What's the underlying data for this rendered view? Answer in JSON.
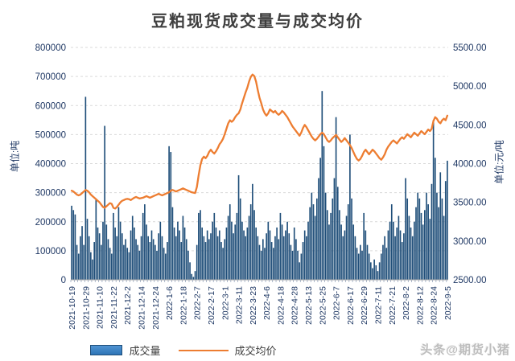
{
  "title": "豆粕现货成交量与成交均价",
  "watermark": "头条@期货小猪",
  "colors": {
    "bar": "#1F4E79",
    "line": "#ED7D31",
    "axis_text": "#1F3864",
    "grid": "#D9D9D9",
    "axis_line": "#A6A6A6",
    "title_text": "#3F3F3F"
  },
  "chart_data": {
    "type": "bar+line",
    "title": "豆粕现货成交量与成交均价",
    "grid": "horizontal-dashed",
    "legend_position": "bottom",
    "left_axis": {
      "unit_label": "单位:吨",
      "range": [
        0,
        800000
      ],
      "tick_step": 100000,
      "ticks": [
        "0",
        "100000",
        "200000",
        "300000",
        "400000",
        "500000",
        "600000",
        "700000",
        "800000"
      ]
    },
    "right_axis": {
      "unit_label": "单位:元/吨",
      "range": [
        2500,
        5500
      ],
      "tick_step": 500,
      "ticks": [
        "2500.00",
        "3000.00",
        "3500.00",
        "4000.00",
        "4500.00",
        "5000.00",
        "5500.00"
      ]
    },
    "x_labels": [
      "2021-10-19",
      "2021-10-29",
      "2021-11-10",
      "2021-11-22",
      "2021-12-2",
      "2021-12-14",
      "2021-12-24",
      "2022-1-6",
      "2022-1-18",
      "2022-2-7",
      "2022-2-17",
      "2022-3-1",
      "2022-3-11",
      "2022-3-23",
      "2022-4-6",
      "2022-4-18",
      "2022-4-28",
      "2022-5-13",
      "2022-5-25",
      "2022-6-7",
      "2022-6-17",
      "2022-6-29",
      "2022-7-11",
      "2022-7-21",
      "2022-8-2",
      "2022-8-12",
      "2022-8-24",
      "2022-9-5"
    ],
    "label_every": 8,
    "series": [
      {
        "name": "成交量",
        "type": "bar",
        "axis": "left",
        "color": "#1F4E79",
        "values": [
          255000,
          240000,
          225000,
          120000,
          90000,
          150000,
          185000,
          120000,
          630000,
          210000,
          150000,
          95000,
          70000,
          130000,
          280000,
          180000,
          160000,
          120000,
          200000,
          530000,
          190000,
          140000,
          110000,
          90000,
          230000,
          180000,
          150000,
          250000,
          200000,
          160000,
          120000,
          140000,
          110000,
          95000,
          170000,
          220000,
          180000,
          140000,
          120000,
          100000,
          150000,
          230000,
          260000,
          190000,
          150000,
          130000,
          170000,
          140000,
          120000,
          100000,
          160000,
          200000,
          150000,
          110000,
          90000,
          130000,
          460000,
          440000,
          250000,
          180000,
          150000,
          200000,
          170000,
          130000,
          220000,
          180000,
          140000,
          100000,
          60000,
          20000,
          10000,
          30000,
          120000,
          230000,
          240000,
          180000,
          150000,
          130000,
          170000,
          140000,
          160000,
          200000,
          230000,
          180000,
          150000,
          170000,
          130000,
          110000,
          140000,
          180000,
          220000,
          260000,
          200000,
          160000,
          190000,
          230000,
          360000,
          280000,
          200000,
          170000,
          150000,
          180000,
          220000,
          260000,
          330000,
          240000,
          180000,
          150000,
          120000,
          100000,
          140000,
          110000,
          160000,
          200000,
          170000,
          130000,
          110000,
          150000,
          180000,
          140000,
          230000,
          190000,
          150000,
          170000,
          200000,
          160000,
          120000,
          100000,
          180000,
          140000,
          100000,
          60000,
          90000,
          130000,
          170000,
          150000,
          200000,
          250000,
          300000,
          260000,
          220000,
          280000,
          350000,
          420000,
          650000,
          460000,
          300000,
          240000,
          190000,
          230000,
          280000,
          350000,
          560000,
          320000,
          240000,
          190000,
          150000,
          170000,
          220000,
          260000,
          500000,
          280000,
          190000,
          150000,
          110000,
          90000,
          120000,
          100000,
          230000,
          170000,
          120000,
          90000,
          60000,
          40000,
          70000,
          50000,
          30000,
          60000,
          90000,
          120000,
          150000,
          110000,
          170000,
          200000,
          260000,
          200000,
          150000,
          180000,
          220000,
          170000,
          130000,
          160000,
          350000,
          280000,
          220000,
          180000,
          150000,
          200000,
          250000,
          300000,
          280000,
          230000,
          190000,
          240000,
          300000,
          260000,
          210000,
          330000,
          550000,
          420000,
          300000,
          250000,
          370000,
          280000,
          220000,
          340000,
          410000
        ]
      },
      {
        "name": "成交均价",
        "type": "line",
        "axis": "right",
        "color": "#ED7D31",
        "values": [
          3650,
          3640,
          3620,
          3600,
          3590,
          3600,
          3620,
          3640,
          3660,
          3650,
          3630,
          3600,
          3580,
          3560,
          3540,
          3520,
          3500,
          3470,
          3440,
          3430,
          3450,
          3470,
          3490,
          3480,
          3430,
          3420,
          3440,
          3470,
          3500,
          3520,
          3530,
          3540,
          3545,
          3540,
          3530,
          3545,
          3560,
          3570,
          3560,
          3550,
          3555,
          3560,
          3570,
          3580,
          3570,
          3560,
          3570,
          3580,
          3590,
          3600,
          3610,
          3600,
          3590,
          3600,
          3610,
          3620,
          3630,
          3650,
          3660,
          3650,
          3640,
          3650,
          3660,
          3670,
          3680,
          3670,
          3660,
          3650,
          3640,
          3630,
          3625,
          3620,
          3700,
          3850,
          3980,
          4060,
          4090,
          4070,
          4100,
          4150,
          4180,
          4150,
          4130,
          4160,
          4200,
          4250,
          4280,
          4320,
          4380,
          4450,
          4520,
          4560,
          4540,
          4560,
          4600,
          4630,
          4650,
          4700,
          4780,
          4850,
          4920,
          4980,
          5060,
          5120,
          5150,
          5130,
          5060,
          4950,
          4850,
          4780,
          4700,
          4650,
          4620,
          4650,
          4700,
          4680,
          4660,
          4680,
          4650,
          4630,
          4650,
          4680,
          4660,
          4630,
          4600,
          4560,
          4520,
          4480,
          4450,
          4420,
          4390,
          4360,
          4400,
          4460,
          4500,
          4470,
          4430,
          4390,
          4350,
          4320,
          4300,
          4320,
          4350,
          4380,
          4400,
          4380,
          4340,
          4300,
          4280,
          4300,
          4330,
          4350,
          4370,
          4340,
          4310,
          4280,
          4300,
          4330,
          4300,
          4270,
          4240,
          4200,
          4150,
          4100,
          4060,
          4040,
          4060,
          4100,
          4150,
          4180,
          4150,
          4120,
          4150,
          4180,
          4160,
          4130,
          4100,
          4070,
          4050,
          4080,
          4120,
          4180,
          4220,
          4250,
          4280,
          4300,
          4280,
          4260,
          4290,
          4320,
          4340,
          4320,
          4350,
          4380,
          4360,
          4340,
          4370,
          4400,
          4380,
          4360,
          4390,
          4420,
          4400,
          4380,
          4410,
          4440,
          4420,
          4450,
          4550,
          4600,
          4580,
          4540,
          4520,
          4560,
          4580,
          4560,
          4620
        ]
      }
    ]
  }
}
